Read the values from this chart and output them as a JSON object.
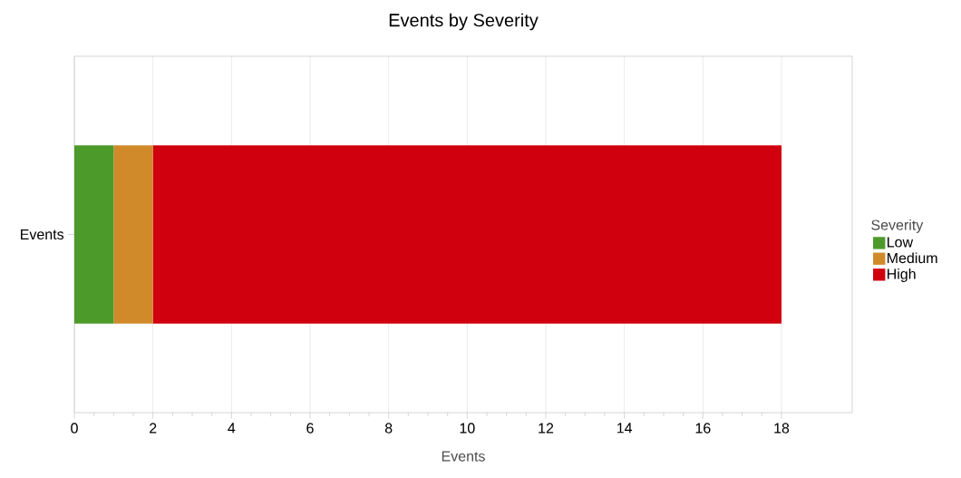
{
  "chart_data": {
    "type": "bar",
    "title": "Events by Severity",
    "xlabel": "Events",
    "legend_title": "Severity",
    "orientation": "horizontal",
    "stacked": true,
    "categories": [
      "Events"
    ],
    "series": [
      {
        "name": "Low",
        "color": "#4c9a2a",
        "values": [
          1
        ]
      },
      {
        "name": "Medium",
        "color": "#d08a2a",
        "values": [
          1
        ]
      },
      {
        "name": "High",
        "color": "#d0000e",
        "values": [
          16
        ]
      }
    ],
    "xlim": [
      0,
      19.8
    ],
    "xticks": [
      0,
      2,
      4,
      6,
      8,
      10,
      12,
      14,
      16,
      18
    ],
    "grid": "x",
    "legend": "right"
  }
}
